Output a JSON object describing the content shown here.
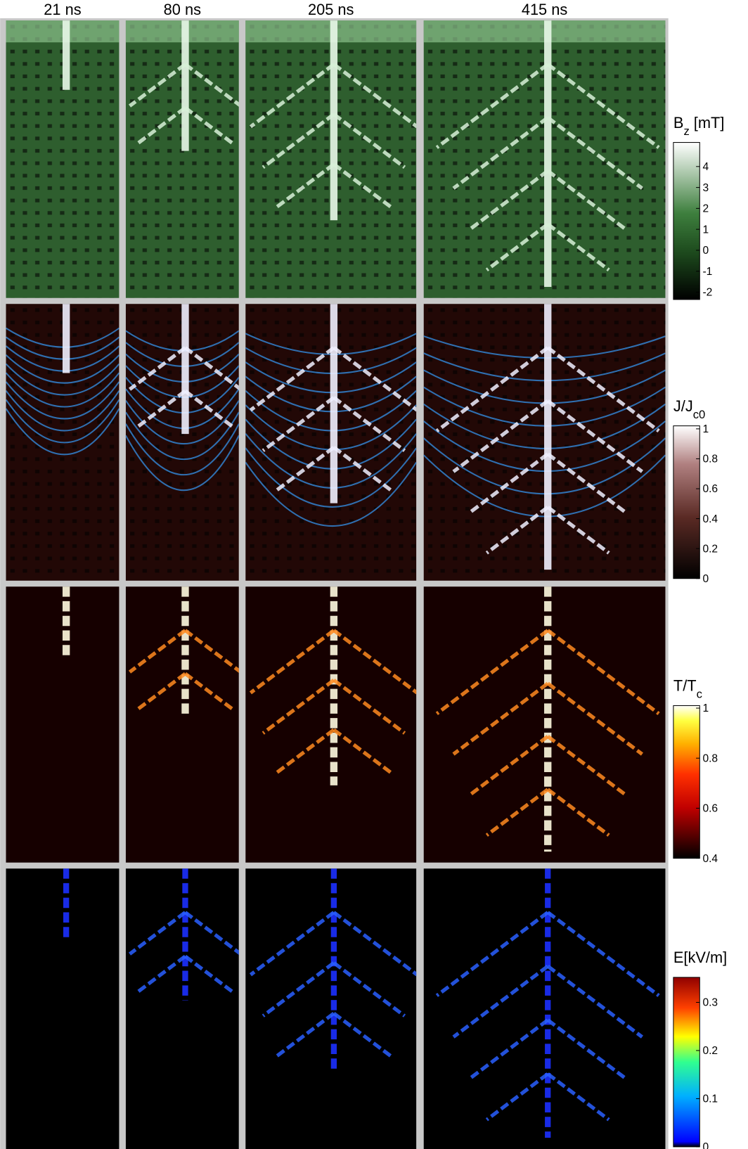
{
  "column_titles": [
    "21 ns",
    "80 ns",
    "205 ns",
    "415 ns"
  ],
  "rows": [
    {
      "colorbar": {
        "label": "B",
        "subscript": "z",
        "unit": " [mT]",
        "range": [
          -2.35,
          5.15
        ],
        "ticks": [
          -2,
          -1,
          0,
          1,
          2,
          3,
          4
        ]
      }
    },
    {
      "colorbar": {
        "label": "J/J",
        "subscript": "c0",
        "range": [
          0,
          1.02
        ],
        "ticks": [
          0,
          0.2,
          0.4,
          0.6,
          0.8,
          1
        ]
      }
    },
    {
      "colorbar": {
        "label": "T/T",
        "subscript": "c",
        "range": [
          0.4,
          1.01
        ],
        "ticks": [
          0.4,
          0.6,
          0.8,
          1
        ]
      }
    },
    {
      "colorbar": {
        "label": "E[kV/m]",
        "range": [
          0,
          0.352
        ],
        "ticks": [
          0,
          0.1,
          0.2,
          0.3
        ]
      }
    }
  ]
}
